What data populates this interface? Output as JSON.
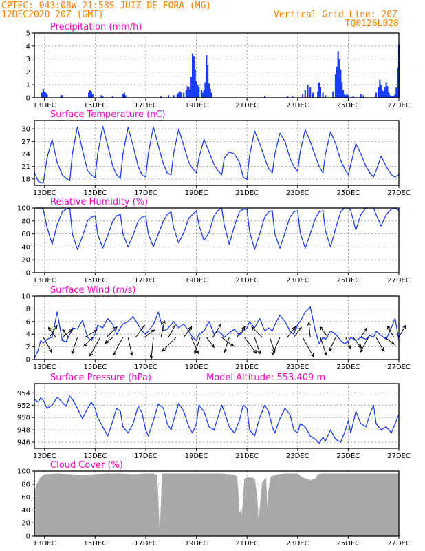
{
  "header": {
    "line1": "CPTEC:   043:08W-21:58S  JUIZ DE FORA (MG)",
    "line2": "12DEC2020 20Z (GMT)",
    "grid_note": "Vertical Grid Line: 20Z",
    "code": "TQ0126L028"
  },
  "colors": {
    "header": "#ff8000",
    "title": "#ff00c0",
    "series": "#1a3cff",
    "precip_bar": "#1a3cff",
    "cloud": "#a9a9a9"
  },
  "chart_data": [
    {
      "id": "precipitation",
      "type": "bar",
      "title": "Precipitation (mm/h)",
      "xlabel": "",
      "ylabel": "",
      "x_day_range": [
        12.6,
        27.0
      ],
      "ylim": [
        0,
        5
      ],
      "yticks": [
        0,
        1,
        2,
        3,
        4,
        5
      ],
      "xticks": [
        "13DEC",
        "15DEC",
        "17DEC",
        "19DEC",
        "21DEC",
        "23DEC",
        "25DEC",
        "27DEC"
      ],
      "grid": true,
      "x": [
        12.9,
        12.95,
        13.0,
        13.05,
        13.1,
        13.65,
        13.7,
        14.75,
        14.8,
        14.85,
        14.9,
        15.25,
        15.3,
        15.7,
        16.1,
        16.15,
        16.2,
        17.6,
        17.9,
        18.1,
        18.25,
        18.3,
        18.35,
        18.4,
        18.5,
        18.6,
        18.65,
        18.7,
        18.75,
        18.8,
        18.85,
        18.9,
        18.95,
        19.0,
        19.05,
        19.1,
        19.2,
        19.25,
        19.3,
        19.35,
        19.4,
        19.45,
        19.5,
        19.55,
        19.6,
        21.7,
        22.6,
        22.8,
        23.2,
        23.3,
        23.4,
        23.5,
        23.6,
        23.8,
        23.85,
        23.9,
        24.0,
        24.1,
        24.4,
        24.5,
        24.55,
        24.6,
        24.65,
        24.7,
        24.75,
        24.8,
        24.85,
        24.9,
        24.95,
        25.0,
        25.2,
        25.5,
        25.6,
        26.1,
        26.2,
        26.25,
        26.3,
        26.35,
        26.4,
        26.45,
        26.5,
        26.55,
        26.6,
        26.65,
        26.7,
        26.75,
        26.8,
        26.85,
        26.9,
        26.95,
        27.0
      ],
      "values": [
        0.4,
        0.7,
        0.5,
        0.4,
        0.3,
        0.2,
        0.2,
        0.4,
        0.6,
        0.5,
        0.3,
        0.2,
        0.1,
        0.1,
        0.3,
        0.4,
        0.2,
        0.1,
        0.2,
        0.2,
        0.3,
        0.4,
        0.5,
        0.4,
        0.4,
        0.6,
        0.9,
        0.8,
        0.6,
        1.6,
        3.4,
        3.2,
        2.2,
        1.3,
        1.0,
        0.8,
        0.6,
        0.4,
        0.6,
        1.2,
        3.3,
        2.5,
        1.1,
        0.7,
        0.4,
        0.1,
        0.1,
        0.1,
        0.3,
        0.6,
        1.0,
        0.8,
        0.4,
        0.5,
        1.2,
        0.8,
        0.4,
        0.2,
        0.5,
        1.8,
        2.4,
        3.6,
        3.0,
        2.2,
        1.2,
        0.6,
        0.3,
        0.2,
        0.3,
        0.2,
        0.1,
        0.3,
        0.2,
        0.4,
        0.8,
        1.4,
        1.0,
        0.6,
        0.5,
        0.8,
        1.2,
        0.9,
        0.4,
        0.2,
        0.1,
        0.1,
        0.1,
        0.3,
        0.8,
        2.3,
        4.1
      ]
    },
    {
      "id": "temperature",
      "type": "line",
      "title": "Surface Temperature (nC)",
      "xlabel": "",
      "ylabel": "",
      "x_day_range": [
        12.6,
        27.0
      ],
      "ylim": [
        16.5,
        32
      ],
      "yticks": [
        18,
        21,
        24,
        27,
        30
      ],
      "xticks": [
        "13DEC",
        "15DEC",
        "17DEC",
        "19DEC",
        "21DEC",
        "23DEC",
        "25DEC",
        "27DEC"
      ],
      "grid": true,
      "x": [
        12.6,
        12.75,
        12.85,
        12.95,
        13.1,
        13.3,
        13.5,
        13.7,
        13.85,
        14.0,
        14.1,
        14.3,
        14.5,
        14.7,
        14.85,
        15.0,
        15.1,
        15.3,
        15.5,
        15.7,
        15.85,
        16.0,
        16.1,
        16.3,
        16.5,
        16.7,
        16.85,
        17.0,
        17.1,
        17.3,
        17.5,
        17.7,
        17.85,
        18.0,
        18.1,
        18.3,
        18.5,
        18.7,
        18.85,
        19.0,
        19.1,
        19.3,
        19.5,
        19.7,
        19.85,
        20.0,
        20.1,
        20.3,
        20.5,
        20.7,
        20.85,
        21.0,
        21.1,
        21.3,
        21.5,
        21.7,
        21.85,
        22.0,
        22.1,
        22.3,
        22.5,
        22.7,
        22.85,
        23.0,
        23.1,
        23.3,
        23.5,
        23.7,
        23.85,
        24.0,
        24.1,
        24.3,
        24.5,
        24.7,
        24.85,
        25.0,
        25.1,
        25.3,
        25.5,
        25.7,
        25.85,
        26.0,
        26.1,
        26.3,
        26.5,
        26.7,
        26.85,
        27.0
      ],
      "values": [
        19.5,
        17.5,
        17.2,
        17.0,
        23.0,
        27.5,
        22.0,
        19.0,
        18.2,
        17.6,
        24.0,
        30.5,
        25.0,
        20.0,
        19.0,
        18.3,
        24.0,
        30.6,
        26.0,
        21.0,
        19.0,
        18.2,
        24.0,
        30.4,
        26.0,
        21.0,
        19.0,
        18.5,
        24.0,
        30.5,
        26.0,
        21.5,
        19.5,
        19.0,
        24.0,
        30.0,
        26.0,
        22.0,
        20.5,
        19.5,
        23.0,
        27.5,
        24.5,
        21.5,
        20.0,
        19.0,
        23.0,
        24.5,
        24.0,
        22.0,
        18.5,
        17.8,
        23.5,
        29.5,
        26.5,
        23.0,
        20.5,
        19.5,
        24.0,
        29.0,
        27.0,
        23.0,
        21.0,
        19.8,
        24.5,
        29.8,
        27.0,
        23.5,
        21.0,
        19.5,
        24.0,
        29.3,
        26.5,
        22.5,
        20.5,
        19.0,
        21.5,
        26.5,
        24.0,
        21.0,
        19.5,
        18.5,
        20.0,
        23.5,
        21.0,
        19.0,
        18.5,
        19.0
      ]
    },
    {
      "id": "humidity",
      "type": "line",
      "title": "Relative Humidity (%)",
      "xlabel": "",
      "ylabel": "",
      "x_day_range": [
        12.6,
        27.0
      ],
      "ylim": [
        0,
        100
      ],
      "yticks": [
        0,
        20,
        40,
        60,
        80,
        100
      ],
      "xticks": [
        "13DEC",
        "15DEC",
        "17DEC",
        "19DEC",
        "21DEC",
        "23DEC",
        "25DEC",
        "27DEC"
      ],
      "grid": true,
      "x": [
        12.6,
        12.75,
        12.85,
        12.95,
        13.1,
        13.3,
        13.5,
        13.7,
        13.85,
        14.0,
        14.1,
        14.3,
        14.5,
        14.7,
        14.85,
        15.0,
        15.1,
        15.3,
        15.5,
        15.7,
        15.85,
        16.0,
        16.1,
        16.3,
        16.5,
        16.7,
        16.85,
        17.0,
        17.1,
        17.3,
        17.5,
        17.7,
        17.85,
        18.0,
        18.1,
        18.3,
        18.5,
        18.7,
        18.85,
        19.0,
        19.1,
        19.3,
        19.5,
        19.7,
        19.85,
        20.0,
        20.1,
        20.3,
        20.5,
        20.7,
        20.85,
        21.0,
        21.1,
        21.3,
        21.5,
        21.7,
        21.85,
        22.0,
        22.1,
        22.3,
        22.5,
        22.7,
        22.85,
        23.0,
        23.1,
        23.3,
        23.5,
        23.7,
        23.85,
        24.0,
        24.1,
        24.3,
        24.5,
        24.7,
        24.85,
        25.0,
        25.1,
        25.3,
        25.5,
        25.7,
        25.85,
        26.0,
        26.1,
        26.3,
        26.5,
        26.7,
        26.85,
        27.0
      ],
      "values": [
        100,
        100,
        100,
        98,
        70,
        44,
        74,
        94,
        98,
        100,
        60,
        36,
        56,
        80,
        86,
        88,
        60,
        38,
        58,
        80,
        88,
        90,
        60,
        40,
        58,
        80,
        86,
        88,
        60,
        40,
        60,
        80,
        90,
        94,
        70,
        46,
        62,
        84,
        90,
        96,
        74,
        50,
        62,
        88,
        96,
        100,
        74,
        44,
        72,
        94,
        98,
        98,
        64,
        36,
        60,
        86,
        94,
        96,
        60,
        38,
        62,
        86,
        94,
        96,
        62,
        38,
        60,
        84,
        94,
        96,
        64,
        40,
        68,
        94,
        100,
        100,
        96,
        66,
        90,
        100,
        100,
        100,
        90,
        72,
        90,
        98,
        100,
        96
      ]
    },
    {
      "id": "wind",
      "type": "line",
      "title": "Surface Wind (m/s)",
      "xlabel": "",
      "ylabel": "",
      "x_day_range": [
        12.6,
        27.0
      ],
      "ylim": [
        0,
        10
      ],
      "yticks": [
        0,
        2,
        4,
        6,
        8,
        10
      ],
      "xticks": [
        "13DEC",
        "15DEC",
        "17DEC",
        "19DEC",
        "21DEC",
        "23DEC",
        "25DEC",
        "27DEC"
      ],
      "grid": true,
      "x": [
        12.6,
        12.75,
        12.85,
        12.95,
        13.1,
        13.3,
        13.5,
        13.7,
        13.85,
        14.0,
        14.1,
        14.3,
        14.5,
        14.7,
        14.85,
        15.0,
        15.1,
        15.3,
        15.5,
        15.7,
        15.85,
        16.0,
        16.1,
        16.3,
        16.5,
        16.7,
        16.85,
        17.0,
        17.1,
        17.3,
        17.5,
        17.7,
        17.85,
        18.0,
        18.1,
        18.3,
        18.5,
        18.7,
        18.85,
        19.0,
        19.1,
        19.3,
        19.5,
        19.7,
        19.85,
        20.0,
        20.1,
        20.3,
        20.5,
        20.7,
        20.85,
        21.0,
        21.1,
        21.3,
        21.5,
        21.7,
        21.85,
        22.0,
        22.1,
        22.3,
        22.5,
        22.7,
        22.85,
        23.0,
        23.1,
        23.3,
        23.5,
        23.7,
        23.85,
        24.0,
        24.1,
        24.3,
        24.5,
        24.7,
        24.85,
        25.0,
        25.1,
        25.3,
        25.5,
        25.7,
        25.85,
        26.0,
        26.1,
        26.3,
        26.5,
        26.7,
        26.85,
        27.0
      ],
      "values": [
        0.2,
        1.5,
        3.0,
        2.6,
        3.2,
        3.5,
        7.5,
        3.0,
        2.8,
        4.0,
        5.0,
        4.8,
        6.2,
        3.5,
        3.0,
        4.0,
        5.4,
        5.0,
        6.5,
        5.5,
        4.0,
        5.0,
        5.6,
        6.0,
        6.8,
        5.5,
        4.5,
        4.0,
        4.5,
        5.5,
        7.5,
        4.5,
        4.8,
        5.5,
        6.0,
        5.0,
        5.6,
        4.5,
        3.5,
        3.0,
        4.0,
        4.5,
        6.0,
        4.0,
        4.5,
        4.0,
        3.5,
        4.2,
        4.8,
        3.8,
        4.5,
        5.0,
        6.0,
        5.0,
        6.5,
        4.5,
        5.0,
        4.5,
        5.5,
        7.0,
        6.0,
        4.5,
        4.0,
        5.5,
        6.0,
        7.5,
        8.3,
        4.5,
        2.5,
        3.5,
        3.2,
        4.5,
        4.0,
        3.0,
        2.5,
        2.8,
        3.5,
        3.0,
        3.5,
        3.2,
        3.8,
        3.5,
        4.5,
        3.8,
        3.2,
        5.0,
        6.5,
        3.0
      ]
    },
    {
      "id": "pressure",
      "type": "line",
      "title": "Surface Pressure (hPa)",
      "annotation": "Model Altitude: 553.409 m",
      "xlabel": "",
      "ylabel": "",
      "x_day_range": [
        12.6,
        27.0
      ],
      "ylim": [
        945,
        955.5
      ],
      "yticks": [
        946,
        948,
        950,
        952,
        954
      ],
      "xticks": [
        "13DEC",
        "15DEC",
        "17DEC",
        "19DEC",
        "21DEC",
        "23DEC",
        "25DEC",
        "27DEC"
      ],
      "grid": true,
      "x": [
        12.6,
        12.75,
        12.85,
        12.95,
        13.1,
        13.3,
        13.5,
        13.7,
        13.85,
        14.0,
        14.1,
        14.3,
        14.5,
        14.7,
        14.85,
        15.0,
        15.1,
        15.3,
        15.5,
        15.7,
        15.85,
        16.0,
        16.1,
        16.3,
        16.5,
        16.7,
        16.85,
        17.0,
        17.1,
        17.3,
        17.5,
        17.7,
        17.85,
        18.0,
        18.1,
        18.3,
        18.5,
        18.7,
        18.85,
        19.0,
        19.1,
        19.3,
        19.5,
        19.7,
        19.85,
        20.0,
        20.1,
        20.3,
        20.5,
        20.7,
        20.85,
        21.0,
        21.1,
        21.3,
        21.5,
        21.7,
        21.85,
        22.0,
        22.1,
        22.3,
        22.5,
        22.7,
        22.85,
        23.0,
        23.1,
        23.3,
        23.5,
        23.7,
        23.85,
        24.0,
        24.1,
        24.3,
        24.5,
        24.7,
        24.85,
        25.0,
        25.1,
        25.3,
        25.5,
        25.7,
        25.85,
        26.0,
        26.1,
        26.3,
        26.5,
        26.7,
        26.85,
        27.0
      ],
      "values": [
        953.0,
        952.5,
        953.2,
        952.8,
        951.5,
        952.0,
        953.3,
        952.5,
        951.8,
        953.5,
        953.0,
        951.5,
        949.8,
        951.5,
        952.5,
        951.5,
        950.0,
        948.5,
        947.0,
        949.5,
        951.5,
        951.0,
        948.5,
        947.5,
        949.0,
        951.8,
        950.8,
        948.0,
        947.0,
        949.5,
        952.2,
        951.5,
        949.0,
        948.0,
        949.5,
        952.3,
        951.0,
        948.5,
        947.5,
        949.0,
        952.0,
        951.0,
        948.5,
        948.0,
        950.0,
        952.0,
        951.0,
        948.5,
        947.5,
        949.5,
        952.0,
        951.5,
        948.0,
        947.0,
        950.0,
        952.0,
        951.0,
        948.5,
        947.5,
        949.8,
        951.5,
        950.5,
        948.0,
        947.5,
        949.0,
        948.5,
        947.0,
        946.5,
        945.8,
        946.8,
        946.2,
        948.0,
        946.5,
        946.0,
        947.5,
        949.5,
        947.5,
        951.0,
        949.0,
        948.5,
        950.5,
        952.0,
        949.0,
        948.0,
        948.5,
        947.5,
        949.0,
        950.5
      ]
    },
    {
      "id": "cloud_cover",
      "type": "area",
      "title": "Cloud Cover (%)",
      "xlabel": "",
      "ylabel": "",
      "x_day_range": [
        12.6,
        27.0
      ],
      "ylim": [
        0,
        100
      ],
      "yticks": [
        0,
        20,
        40,
        60,
        80,
        100
      ],
      "xticks": [
        "13DEC",
        "15DEC",
        "17DEC",
        "19DEC",
        "21DEC",
        "23DEC",
        "25DEC",
        "27DEC"
      ],
      "grid": true,
      "x": [
        12.6,
        12.7,
        12.8,
        12.9,
        13.0,
        13.5,
        14.0,
        14.5,
        15.0,
        15.5,
        16.0,
        16.5,
        17.0,
        17.3,
        17.45,
        17.55,
        17.65,
        18.0,
        18.5,
        19.0,
        19.5,
        20.0,
        20.3,
        20.5,
        20.6,
        20.65,
        20.7,
        20.75,
        20.8,
        20.9,
        21.0,
        21.2,
        21.3,
        21.35,
        21.4,
        21.45,
        21.5,
        21.6,
        21.75,
        21.8,
        21.85,
        21.95,
        22.0,
        22.2,
        22.5,
        23.0,
        23.2,
        23.5,
        23.7,
        23.8,
        24.0,
        24.5,
        25.0,
        25.5,
        26.0,
        26.5,
        27.0
      ],
      "values": [
        68,
        80,
        88,
        92,
        95,
        96,
        95,
        94,
        95,
        96,
        96,
        95,
        96,
        96,
        94,
        0,
        96,
        96,
        96,
        96,
        96,
        96,
        95,
        94,
        92,
        70,
        35,
        40,
        30,
        88,
        90,
        90,
        88,
        75,
        60,
        25,
        40,
        82,
        90,
        40,
        70,
        92,
        92,
        95,
        96,
        96,
        90,
        86,
        88,
        95,
        96,
        96,
        96,
        96,
        96,
        96,
        96
      ]
    }
  ],
  "wind_vectors": {
    "x": [
      12.95,
      13.2,
      13.45,
      13.7,
      13.95,
      14.3,
      14.6,
      14.9,
      15.2,
      15.45,
      15.7,
      16.1,
      16.3,
      16.6,
      16.95,
      17.3,
      17.6,
      17.9,
      18.2,
      18.5,
      18.8,
      19.15,
      19.4,
      19.65,
      20.0,
      20.3,
      20.6,
      20.9,
      21.3,
      21.6,
      21.9,
      22.3,
      22.6,
      22.85,
      23.2,
      23.5,
      23.9,
      24.2,
      24.5,
      24.9,
      25.2,
      25.5,
      25.8,
      26.1,
      26.45,
      26.8,
      27.0
    ],
    "u": [
      0.5,
      0.5,
      -0.6,
      0.8,
      -0.6,
      -0.3,
      0.8,
      -0.7,
      -0.5,
      0.7,
      -0.8,
      -0.5,
      0.2,
      0.6,
      0.8,
      -0.1,
      0.2,
      0.5,
      -0.7,
      0.6,
      0.4,
      -0.3,
      0.6,
      0.5,
      0.8,
      -0.3,
      0.6,
      0.6,
      0.3,
      -0.7,
      0.3,
      -0.4,
      0.6,
      0.6,
      0.5,
      -0.1,
      0.3,
      -0.6,
      -0.4,
      0.4,
      0.6,
      0.5,
      -0.5,
      0.5,
      0.8,
      -0.5,
      0.5
    ],
    "v": [
      -0.9,
      0.8,
      0.8,
      0.6,
      0.8,
      -0.9,
      0.5,
      -0.7,
      -0.9,
      0.7,
      -0.6,
      -0.9,
      -0.9,
      0.8,
      0.6,
      -1.0,
      0.9,
      0.9,
      -0.7,
      0.8,
      -0.9,
      -0.9,
      -0.8,
      0.8,
      -0.6,
      -0.9,
      0.8,
      -0.8,
      -0.9,
      0.7,
      -0.9,
      -0.9,
      0.8,
      0.8,
      -0.9,
      1.0,
      -0.9,
      0.8,
      -0.9,
      -0.9,
      -0.8,
      0.8,
      -0.9,
      -0.9,
      -0.6,
      0.9,
      0.9
    ],
    "mag": [
      2.0,
      1.8,
      1.5,
      1.6,
      1.2,
      2.2,
      1.8,
      1.5,
      2.5,
      1.8,
      1.2,
      2.4,
      2.4,
      1.8,
      1.5,
      2.6,
      2.2,
      1.6,
      2.4,
      1.6,
      2.2,
      2.2,
      1.5,
      2.0,
      1.8,
      2.0,
      1.6,
      2.4,
      2.2,
      1.8,
      2.0,
      2.4,
      1.6,
      1.5,
      2.6,
      1.8,
      2.4,
      1.6,
      1.8,
      1.5,
      1.6,
      1.4,
      2.0,
      1.8,
      1.4,
      1.5,
      1.6
    ]
  }
}
